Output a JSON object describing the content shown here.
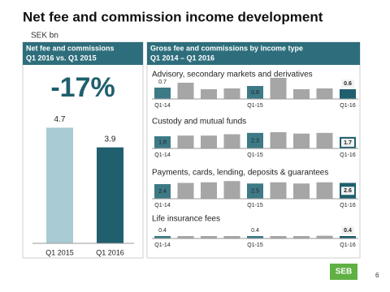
{
  "title": "Net fee and commission income development",
  "unit": "SEK bn",
  "right_panel": {
    "title": "Gross fee and commissions by income type",
    "subtitle": "Q1 2014 – Q1 2016"
  },
  "logo": "SEB",
  "page_number": "6",
  "chart_data": [
    {
      "type": "bar",
      "title": "Net fee and commissions",
      "subtitle": "Q1 2016 vs. Q1 2015",
      "annotation": "-17%",
      "categories": [
        "Q1 2015",
        "Q1 2016"
      ],
      "values": [
        4.7,
        3.9
      ],
      "colors": [
        "#a9cbd3",
        "#1f5f6e"
      ],
      "ylim": [
        0,
        6
      ]
    },
    {
      "type": "bar",
      "title": "Advisory, secondary markets and derivatives",
      "categories": [
        "Q1-14",
        null,
        null,
        null,
        "Q1-15",
        null,
        null,
        null,
        "Q1-16"
      ],
      "values": [
        0.7,
        1.0,
        0.6,
        0.65,
        0.8,
        1.3,
        0.6,
        0.65,
        0.6
      ],
      "colors": [
        "#3d7a86",
        "#a6a6a6",
        "#a6a6a6",
        "#a6a6a6",
        "#3d7a86",
        "#a6a6a6",
        "#a6a6a6",
        "#a6a6a6",
        "#1f5f6e"
      ],
      "ylim": [
        0,
        1.5
      ]
    },
    {
      "type": "bar",
      "title": "Custody and mutual funds",
      "categories": [
        "Q1-14",
        null,
        null,
        null,
        "Q1-15",
        null,
        null,
        null,
        "Q1-16"
      ],
      "values": [
        1.8,
        1.9,
        1.9,
        2.1,
        2.3,
        2.4,
        2.2,
        2.3,
        1.7
      ],
      "colors": [
        "#3d7a86",
        "#a6a6a6",
        "#a6a6a6",
        "#a6a6a6",
        "#3d7a86",
        "#a6a6a6",
        "#a6a6a6",
        "#a6a6a6",
        "#1f5f6e"
      ],
      "ylim": [
        0,
        3.6
      ]
    },
    {
      "type": "bar",
      "title": "Payments, cards, lending, deposits & guarantees",
      "categories": [
        "Q1-14",
        null,
        null,
        null,
        "Q1-15",
        null,
        null,
        null,
        "Q1-16"
      ],
      "values": [
        2.4,
        2.6,
        2.7,
        2.9,
        2.5,
        2.7,
        2.5,
        2.7,
        2.6
      ],
      "colors": [
        "#3d7a86",
        "#a6a6a6",
        "#a6a6a6",
        "#a6a6a6",
        "#3d7a86",
        "#a6a6a6",
        "#a6a6a6",
        "#a6a6a6",
        "#1f5f6e"
      ],
      "ylim": [
        0,
        4
      ]
    },
    {
      "type": "bar",
      "title": "Life insurance fees",
      "categories": [
        "Q1-14",
        null,
        null,
        null,
        "Q1-15",
        null,
        null,
        null,
        "Q1-16"
      ],
      "values": [
        0.4,
        0.4,
        0.4,
        0.4,
        0.4,
        0.4,
        0.4,
        0.45,
        0.4
      ],
      "colors": [
        "#3d7a86",
        "#a6a6a6",
        "#a6a6a6",
        "#a6a6a6",
        "#3d7a86",
        "#a6a6a6",
        "#a6a6a6",
        "#a6a6a6",
        "#1f5f6e"
      ],
      "ylim": [
        0,
        4
      ]
    }
  ]
}
